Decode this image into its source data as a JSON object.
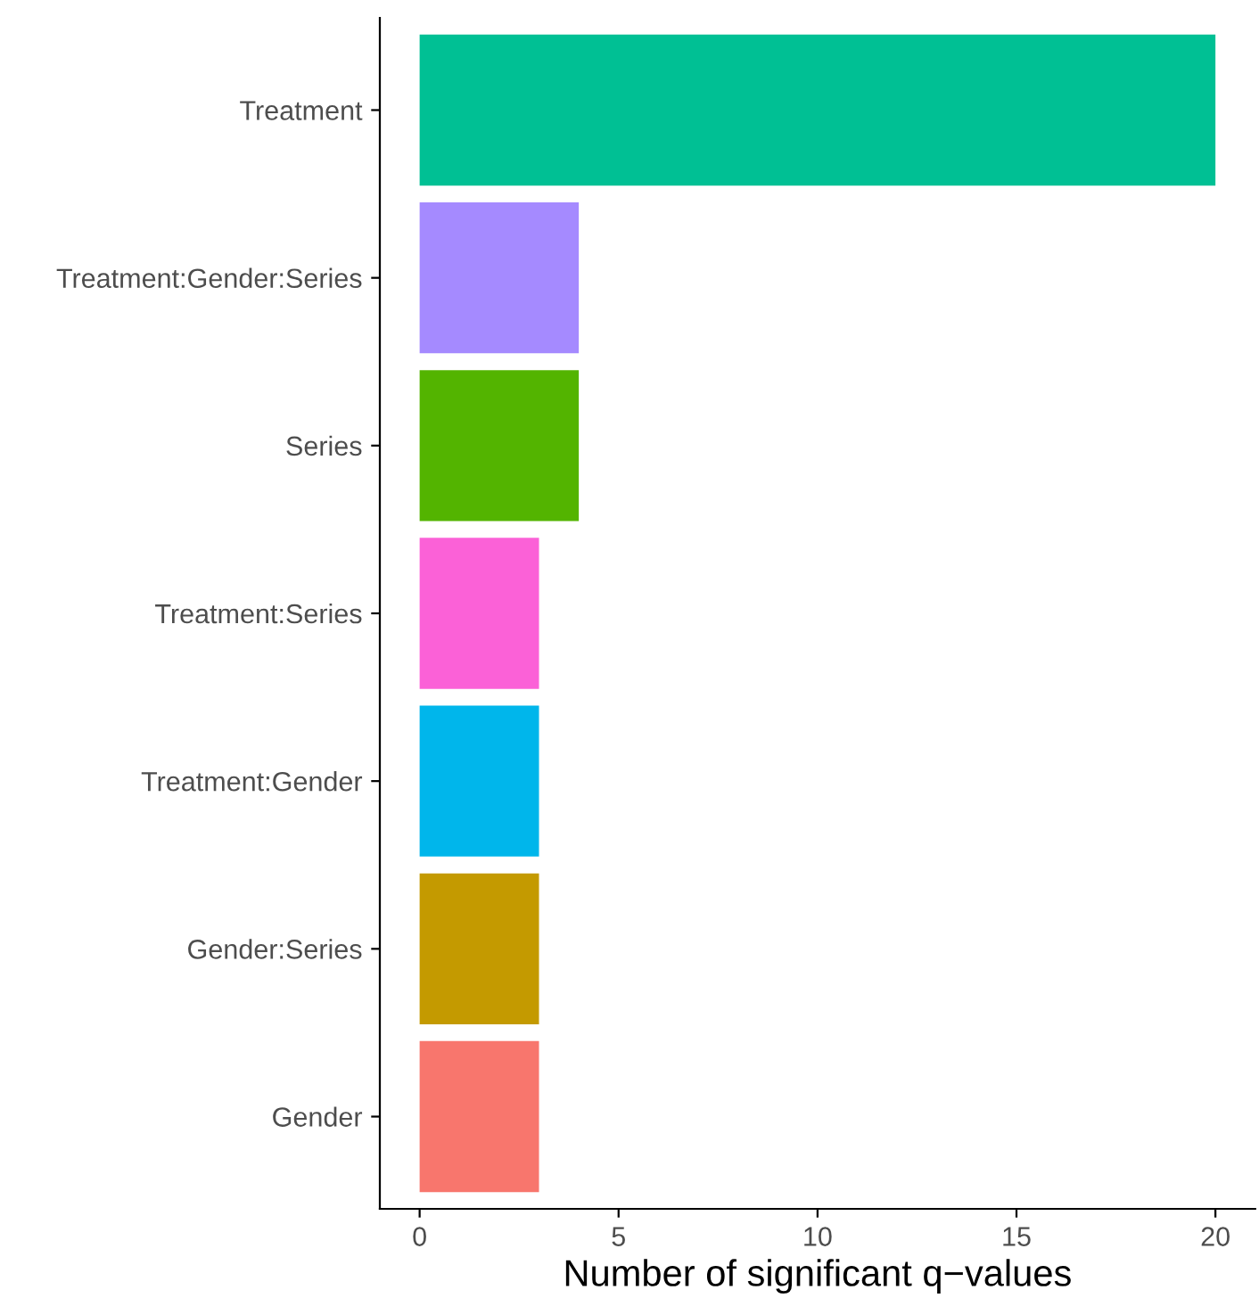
{
  "chart_data": {
    "type": "bar",
    "orientation": "horizontal",
    "xlabel": "Number of significant q−values",
    "categories": [
      "Treatment",
      "Treatment:Gender:Series",
      "Series",
      "Treatment:Series",
      "Treatment:Gender",
      "Gender:Series",
      "Gender"
    ],
    "values": [
      20,
      4,
      4,
      3,
      3,
      3,
      3
    ],
    "colors": [
      "#00c094",
      "#a58aff",
      "#53b400",
      "#fb61d7",
      "#00b6eb",
      "#c49a00",
      "#f8766d"
    ],
    "xlim": [
      -1,
      21
    ],
    "xticks": [
      0,
      5,
      10,
      15,
      20
    ],
    "grid": false,
    "legend": false
  }
}
